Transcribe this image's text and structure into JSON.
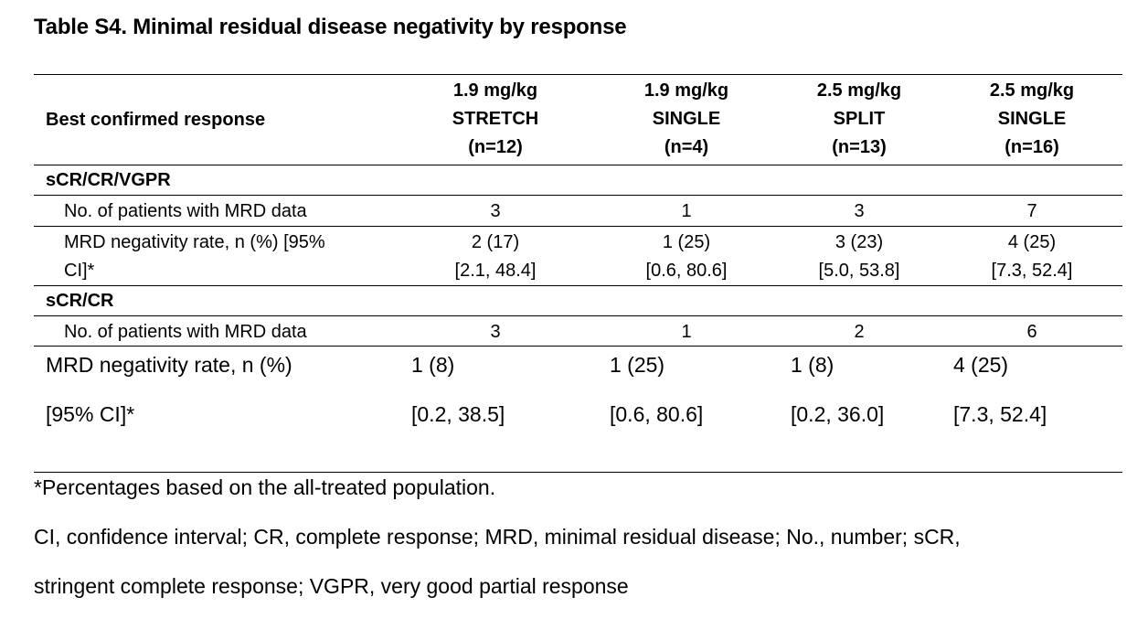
{
  "title": "Table S4. Minimal residual disease negativity by response",
  "header": {
    "row_label": "Best confirmed response",
    "columns": [
      {
        "dose": "1.9 mg/kg",
        "schedule": "STRETCH",
        "n": "(n=12)"
      },
      {
        "dose": "1.9 mg/kg",
        "schedule": "SINGLE",
        "n": "(n=4)"
      },
      {
        "dose": "2.5 mg/kg",
        "schedule": "SPLIT",
        "n": "(n=13)"
      },
      {
        "dose": "2.5 mg/kg",
        "schedule": "SINGLE",
        "n": "(n=16)"
      }
    ]
  },
  "sections": [
    {
      "label": "sCR/CR/VGPR",
      "rows": [
        {
          "label": "No. of patients with MRD data",
          "values": [
            "3",
            "1",
            "3",
            "7"
          ]
        },
        {
          "label_line1": "MRD negativity rate, n (%) [95%",
          "label_line2": "CI]*",
          "values": [
            "2 (17)",
            "1 (25)",
            "3 (23)",
            "4 (25)"
          ],
          "ci": [
            "[2.1, 48.4]",
            "[0.6, 80.6]",
            "[5.0, 53.8]",
            "[7.3, 52.4]"
          ]
        }
      ]
    },
    {
      "label": "sCR/CR",
      "rows": [
        {
          "label": "No. of patients with MRD data",
          "values": [
            "3",
            "1",
            "2",
            "6"
          ]
        },
        {
          "label": "MRD negativity rate, n (%)",
          "values": [
            "1 (8)",
            "1 (25)",
            "1 (8)",
            "4 (25)"
          ]
        },
        {
          "label": "[95% CI]*",
          "values": [
            "[0.2, 38.5]",
            "[0.6, 80.6]",
            "[0.2, 36.0]",
            "[7.3, 52.4]"
          ]
        }
      ]
    }
  ],
  "footnotes": {
    "note1": "*Percentages based on the all-treated population.",
    "note2_line1": "CI, confidence interval; CR, complete response; MRD, minimal residual disease; No., number; sCR,",
    "note2_line2": "stringent complete response; VGPR, very good partial response"
  }
}
